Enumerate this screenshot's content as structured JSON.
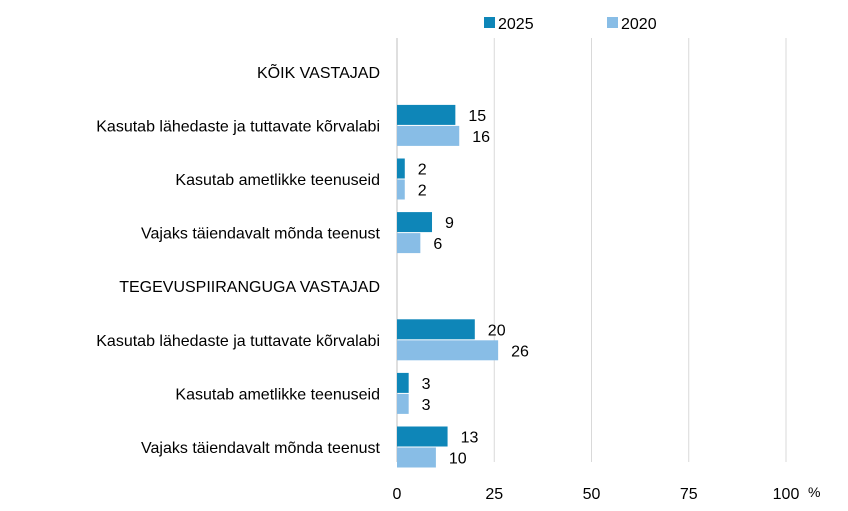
{
  "chart_data": {
    "type": "bar",
    "orientation": "horizontal",
    "categories": [
      "KÕIK VASTAJAD",
      "Kasutab lähedaste ja tuttavate kõrvalabi",
      "Kasutab ametlikke teenuseid",
      "Vajaks täiendavalt mõnda teenust",
      "TEGEVUSPIIRANGUGA VASTAJAD",
      "Kasutab lähedaste ja tuttavate kõrvalabi",
      "Kasutab ametlikke teenuseid",
      "Vajaks täiendavalt mõnda teenust"
    ],
    "series": [
      {
        "name": "2025",
        "color": "#0e86b8",
        "values": [
          null,
          15,
          2,
          9,
          null,
          20,
          3,
          13
        ]
      },
      {
        "name": "2020",
        "color": "#88bde6",
        "values": [
          null,
          16,
          2,
          6,
          null,
          26,
          3,
          10
        ]
      }
    ],
    "xlim": [
      0,
      100
    ],
    "xticks": [
      "0",
      "25",
      "50",
      "75",
      "100"
    ],
    "xunit": "%",
    "grid": "vertical",
    "legend": "top"
  }
}
